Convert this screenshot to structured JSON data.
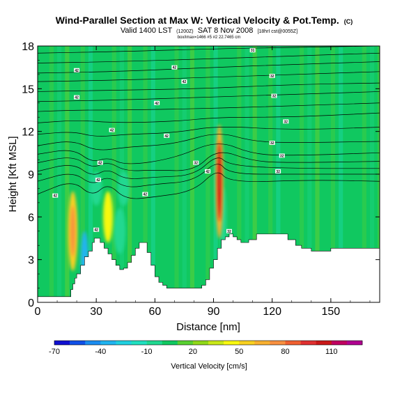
{
  "chart_data": {
    "type": "heatmap",
    "title": "Wind-Parallel Section at Max W: Vertical Velocity & Pot.Temp.",
    "title_mark": "(C)",
    "subtitle_line1": "Valid 1400 LST",
    "subtitle_time": "(1200Z)",
    "subtitle_date": "SAT 8 Nov 2008",
    "subtitle_run": "[18hrI cst@0055Z]",
    "subtitle_line2": "box/imax=1466 #5 #2 22.7465 cm",
    "xlabel": "Distance [nm]",
    "ylabel": "Height [Kft MSL]",
    "xlim": [
      0,
      175
    ],
    "ylim": [
      0,
      18
    ],
    "xticks": [
      "0",
      "30",
      "60",
      "90",
      "120",
      "150"
    ],
    "yticks": [
      "0",
      "3",
      "6",
      "9",
      "12",
      "15",
      "18"
    ],
    "colorbar": {
      "label": "Vertical Velocity [cm/s]",
      "tick_labels": [
        "-70",
        "-40",
        "-10",
        "20",
        "50",
        "80",
        "110"
      ],
      "levels": [
        -70,
        -60,
        -50,
        -40,
        -30,
        -20,
        -10,
        0,
        10,
        20,
        30,
        40,
        50,
        60,
        70,
        80,
        90,
        100,
        110,
        120,
        130
      ],
      "colors": [
        "#1010d0",
        "#1050e8",
        "#1a8cf0",
        "#20b4f0",
        "#20d0e0",
        "#20e0c0",
        "#20d890",
        "#10c860",
        "#58d030",
        "#90d818",
        "#c8e818",
        "#f8f810",
        "#f8d020",
        "#f8b030",
        "#f89040",
        "#f06030",
        "#e03030",
        "#c81818",
        "#c00060",
        "#b00090"
      ]
    },
    "terrain": [
      [
        0,
        0.4
      ],
      [
        16,
        0.4
      ],
      [
        17,
        0.9
      ],
      [
        18,
        1.3
      ],
      [
        19,
        1.7
      ],
      [
        20,
        2.0
      ],
      [
        22,
        2.6
      ],
      [
        24,
        3.2
      ],
      [
        26,
        3.6
      ],
      [
        28,
        4.2
      ],
      [
        29,
        4.5
      ],
      [
        30,
        4.5
      ],
      [
        32,
        4.2
      ],
      [
        34,
        3.8
      ],
      [
        36,
        3.4
      ],
      [
        38,
        3.0
      ],
      [
        40,
        2.6
      ],
      [
        42,
        2.3
      ],
      [
        44,
        2.4
      ],
      [
        46,
        2.8
      ],
      [
        48,
        3.3
      ],
      [
        50,
        3.8
      ],
      [
        52,
        4.2
      ],
      [
        54,
        4.2
      ],
      [
        56,
        3.5
      ],
      [
        58,
        2.6
      ],
      [
        60,
        1.8
      ],
      [
        62,
        1.4
      ],
      [
        64,
        1.2
      ],
      [
        66,
        1.0
      ],
      [
        80,
        1.0
      ],
      [
        84,
        1.2
      ],
      [
        86,
        1.6
      ],
      [
        88,
        2.4
      ],
      [
        90,
        3.0
      ],
      [
        92,
        3.8
      ],
      [
        94,
        4.4
      ],
      [
        96,
        4.6
      ],
      [
        98,
        4.8
      ],
      [
        100,
        4.6
      ],
      [
        102,
        4.4
      ],
      [
        104,
        4.2
      ],
      [
        108,
        4.4
      ],
      [
        112,
        4.8
      ],
      [
        118,
        4.8
      ],
      [
        124,
        4.8
      ],
      [
        128,
        4.4
      ],
      [
        132,
        4.0
      ],
      [
        135,
        3.8
      ],
      [
        140,
        3.6
      ],
      [
        148,
        3.6
      ],
      [
        150,
        3.8
      ],
      [
        175,
        3.8
      ]
    ],
    "updrafts": [
      {
        "x": 18,
        "y": 5.0,
        "rx": 2.4,
        "ry": 2.8,
        "w": 50
      },
      {
        "x": 18,
        "y": 5.0,
        "rx": 1.2,
        "ry": 1.8,
        "w": 75
      },
      {
        "x": 36,
        "y": 6.0,
        "rx": 2.5,
        "ry": 1.8,
        "w": 40
      },
      {
        "x": 93,
        "y": 8.5,
        "rx": 2.0,
        "ry": 4.0,
        "w": 60
      },
      {
        "x": 93,
        "y": 8.5,
        "rx": 1.0,
        "ry": 2.8,
        "w": 100
      }
    ],
    "downdrafts": [
      {
        "x": 24,
        "y": 3.0,
        "rx": 2.0,
        "ry": 2.0,
        "w": -40
      },
      {
        "x": 42,
        "y": 5.0,
        "rx": 3.0,
        "ry": 1.6,
        "w": -10
      },
      {
        "x": 30,
        "y": 8.0,
        "rx": 3.0,
        "ry": 1.2,
        "w": -10
      },
      {
        "x": 44,
        "y": 8.0,
        "rx": 3.0,
        "ry": 1.2,
        "w": -10
      },
      {
        "x": 95,
        "y": 5.5,
        "rx": 1.6,
        "ry": 2.6,
        "w": -10
      }
    ],
    "isentropes": [
      {
        "label": "",
        "points": [
          [
            0,
            17.5
          ],
          [
            40,
            17.6
          ],
          [
            90,
            17.8
          ],
          [
            130,
            17.9
          ],
          [
            175,
            18.0
          ]
        ]
      },
      {
        "label": "",
        "points": [
          [
            0,
            16.8
          ],
          [
            40,
            16.9
          ],
          [
            90,
            17.1
          ],
          [
            130,
            17.3
          ],
          [
            175,
            17.5
          ]
        ]
      },
      {
        "label": "",
        "points": [
          [
            0,
            16.1
          ],
          [
            40,
            16.2
          ],
          [
            90,
            16.5
          ],
          [
            130,
            16.7
          ],
          [
            175,
            16.9
          ]
        ]
      },
      {
        "label": "",
        "points": [
          [
            0,
            15.5
          ],
          [
            40,
            15.6
          ],
          [
            90,
            15.8
          ],
          [
            130,
            16.0
          ],
          [
            175,
            16.2
          ]
        ]
      },
      {
        "label": "",
        "points": [
          [
            0,
            14.8
          ],
          [
            40,
            14.9
          ],
          [
            85,
            15.0
          ],
          [
            130,
            15.3
          ],
          [
            175,
            15.4
          ]
        ]
      },
      {
        "label": "",
        "points": [
          [
            0,
            14.1
          ],
          [
            40,
            14.2
          ],
          [
            85,
            14.4
          ],
          [
            130,
            14.6
          ],
          [
            175,
            14.8
          ]
        ]
      },
      {
        "label": "",
        "points": [
          [
            0,
            13.4
          ],
          [
            20,
            13.5
          ],
          [
            40,
            13.5
          ],
          [
            85,
            13.6
          ],
          [
            130,
            13.8
          ],
          [
            175,
            14.0
          ]
        ]
      },
      {
        "label": "",
        "points": [
          [
            0,
            12.6
          ],
          [
            20,
            12.8
          ],
          [
            40,
            12.6
          ],
          [
            70,
            12.7
          ],
          [
            92,
            13.0
          ],
          [
            130,
            13.0
          ],
          [
            175,
            13.3
          ]
        ]
      },
      {
        "label": "",
        "points": [
          [
            0,
            11.8
          ],
          [
            18,
            12.0
          ],
          [
            30,
            11.6
          ],
          [
            45,
            11.8
          ],
          [
            70,
            11.9
          ],
          [
            92,
            12.4
          ],
          [
            130,
            12.1
          ],
          [
            175,
            12.3
          ]
        ]
      },
      {
        "label": "",
        "points": [
          [
            0,
            11.0
          ],
          [
            18,
            11.4
          ],
          [
            30,
            10.6
          ],
          [
            45,
            10.9
          ],
          [
            70,
            11.1
          ],
          [
            92,
            12.0
          ],
          [
            110,
            11.3
          ],
          [
            130,
            11.2
          ],
          [
            175,
            11.3
          ]
        ]
      },
      {
        "label": "",
        "points": [
          [
            0,
            10.4
          ],
          [
            18,
            10.8
          ],
          [
            28,
            9.8
          ],
          [
            36,
            10.2
          ],
          [
            45,
            9.6
          ],
          [
            70,
            10.1
          ],
          [
            92,
            11.4
          ],
          [
            110,
            10.4
          ],
          [
            130,
            10.3
          ],
          [
            175,
            10.5
          ]
        ]
      },
      {
        "label": "",
        "points": [
          [
            0,
            9.8
          ],
          [
            18,
            10.3
          ],
          [
            28,
            9.4
          ],
          [
            36,
            9.9
          ],
          [
            45,
            9.2
          ],
          [
            60,
            9.3
          ],
          [
            80,
            9.2
          ],
          [
            92,
            10.8
          ],
          [
            110,
            9.9
          ],
          [
            130,
            9.8
          ],
          [
            175,
            9.9
          ]
        ]
      },
      {
        "label": "",
        "points": [
          [
            0,
            9.2
          ],
          [
            18,
            9.8
          ],
          [
            28,
            8.8
          ],
          [
            36,
            9.4
          ],
          [
            45,
            8.6
          ],
          [
            60,
            8.8
          ],
          [
            80,
            8.9
          ],
          [
            92,
            10.4
          ],
          [
            98,
            9.6
          ],
          [
            130,
            9.4
          ],
          [
            175,
            9.4
          ]
        ]
      },
      {
        "label": "",
        "points": [
          [
            0,
            8.5
          ],
          [
            18,
            9.2
          ],
          [
            28,
            8.2
          ],
          [
            36,
            8.9
          ],
          [
            45,
            8.0
          ],
          [
            60,
            8.3
          ],
          [
            80,
            8.5
          ],
          [
            92,
            10.0
          ],
          [
            98,
            9.0
          ],
          [
            130,
            9.0
          ],
          [
            175,
            9.0
          ]
        ]
      },
      {
        "label": "",
        "points": [
          [
            0,
            7.6
          ],
          [
            18,
            8.6
          ],
          [
            28,
            7.4
          ],
          [
            36,
            8.4
          ],
          [
            45,
            7.2
          ],
          [
            60,
            7.4
          ],
          [
            80,
            7.8
          ],
          [
            92,
            9.4
          ],
          [
            98,
            8.4
          ],
          [
            140,
            8.6
          ],
          [
            175,
            8.5
          ]
        ]
      }
    ],
    "isentrope_labels": [
      {
        "text": "31",
        "x": 110,
        "y": 17.7
      },
      {
        "text": "42",
        "x": 20,
        "y": 16.3
      },
      {
        "text": "42",
        "x": 70,
        "y": 16.5
      },
      {
        "text": "32",
        "x": 120,
        "y": 15.9
      },
      {
        "text": "42",
        "x": 75,
        "y": 15.5
      },
      {
        "text": "42",
        "x": 20,
        "y": 14.4
      },
      {
        "text": "42",
        "x": 61,
        "y": 14.0
      },
      {
        "text": "32",
        "x": 121,
        "y": 14.5
      },
      {
        "text": "42",
        "x": 38,
        "y": 12.1
      },
      {
        "text": "32",
        "x": 127,
        "y": 12.7
      },
      {
        "text": "42",
        "x": 66,
        "y": 11.7
      },
      {
        "text": "32",
        "x": 120,
        "y": 11.2
      },
      {
        "text": "42",
        "x": 32,
        "y": 9.8
      },
      {
        "text": "32",
        "x": 81,
        "y": 9.8
      },
      {
        "text": "32",
        "x": 125,
        "y": 10.3
      },
      {
        "text": "42",
        "x": 31,
        "y": 8.6
      },
      {
        "text": "42",
        "x": 87,
        "y": 9.2
      },
      {
        "text": "32",
        "x": 123,
        "y": 9.2
      },
      {
        "text": "42",
        "x": 9,
        "y": 7.5
      },
      {
        "text": "42",
        "x": 55,
        "y": 7.6
      },
      {
        "text": "42",
        "x": 30,
        "y": 5.1
      },
      {
        "text": "32",
        "x": 98,
        "y": 5.0
      }
    ]
  }
}
